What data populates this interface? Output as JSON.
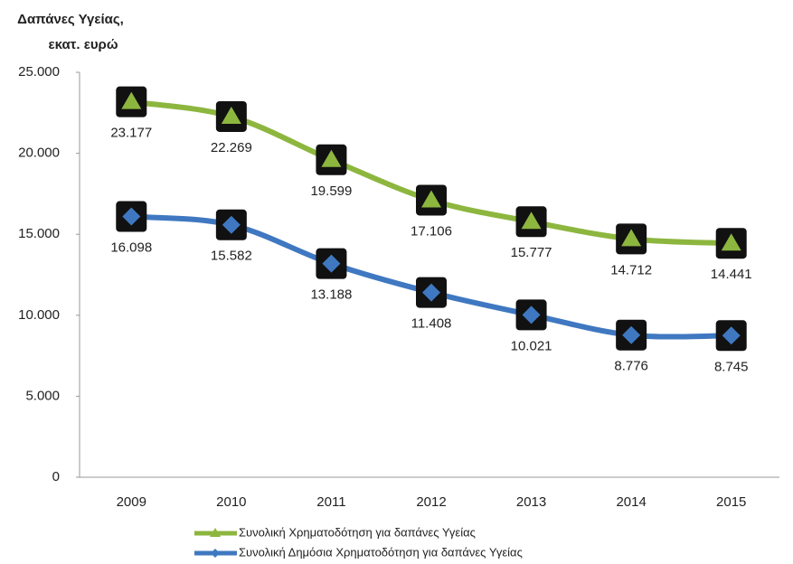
{
  "chart_data": {
    "type": "line",
    "ylabel": [
      "Δαπάνες Υγείας,",
      "εκατ. ευρώ"
    ],
    "categories": [
      "2009",
      "2010",
      "2011",
      "2012",
      "2013",
      "2014",
      "2015"
    ],
    "series": [
      {
        "name": "Συνολική  Χρηματοδότηση  για δαπάνες Υγείας",
        "color": "#8db63f",
        "marker": "triangle",
        "values": [
          23177,
          22269,
          19599,
          17106,
          15777,
          14712,
          14441
        ],
        "value_labels": [
          "23.177",
          "22.269",
          "19.599",
          "17.106",
          "15.777",
          "14.712",
          "14.441"
        ]
      },
      {
        "name": "Συνολική Δημόσια Χρηματοδότηση  για δαπάνες Υγείας",
        "color": "#3f78c1",
        "marker": "diamond",
        "values": [
          16098,
          15582,
          13188,
          11408,
          10021,
          8776,
          8745
        ],
        "value_labels": [
          "16.098",
          "15.582",
          "13.188",
          "11.408",
          "10.021",
          "8.776",
          "8.745"
        ]
      }
    ],
    "ylim": [
      0,
      25000
    ],
    "yticks": [
      0,
      {
        "value": 5000,
        "label": "5.000"
      },
      {
        "value": 10000,
        "label": "10.000"
      },
      {
        "value": 15000,
        "label": "15.000"
      },
      {
        "value": 20000,
        "label": "20.000"
      },
      {
        "value": 25000,
        "label": "25.000"
      }
    ],
    "grid": false,
    "smooth": true,
    "legend": "bottom"
  }
}
